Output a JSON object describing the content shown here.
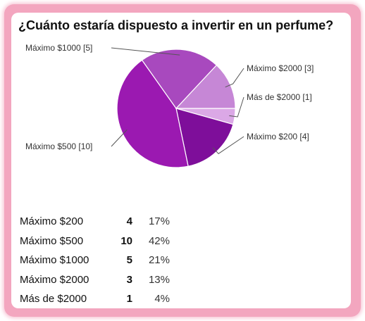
{
  "title": "¿Cuánto estaría dispuesto a invertir en un perfume?",
  "chart_data": {
    "type": "pie",
    "title": "¿Cuánto estaría dispuesto a invertir en un perfume?",
    "slices": [
      {
        "label": "Más de $2000",
        "value": 1,
        "color": "#dba8e6",
        "callout": "Más de $2000 [1]"
      },
      {
        "label": "Máximo $200",
        "value": 4,
        "color": "#7e0e9a",
        "callout": "Máximo $200 [4]"
      },
      {
        "label": "Máximo $500",
        "value": 10,
        "color": "#9b19b1",
        "callout": "Máximo $500 [10]"
      },
      {
        "label": "Máximo $1000",
        "value": 5,
        "color": "#a849be",
        "callout": "Máximo $1000 [5]"
      },
      {
        "label": "Máximo $2000",
        "value": 3,
        "color": "#c687d6",
        "callout": "Máximo $2000 [3]"
      }
    ]
  },
  "summary": {
    "rows": [
      {
        "label": "Máximo $200",
        "count": "4",
        "percent": "17%"
      },
      {
        "label": "Máximo $500",
        "count": "10",
        "percent": "42%"
      },
      {
        "label": "Máximo $1000",
        "count": "5",
        "percent": "21%"
      },
      {
        "label": "Máximo $2000",
        "count": "3",
        "percent": "13%"
      },
      {
        "label": "Más de $2000",
        "count": "1",
        "percent": "4%"
      }
    ]
  }
}
